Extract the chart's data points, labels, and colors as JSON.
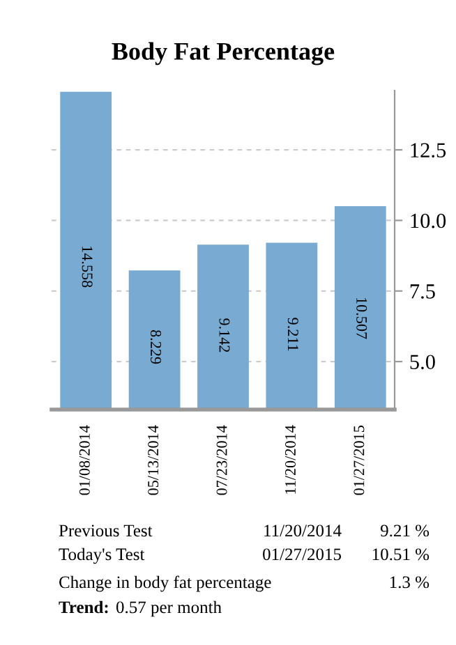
{
  "chart_data": {
    "type": "bar",
    "title": "Body Fat Percentage",
    "categories": [
      "01/08/2014",
      "05/13/2014",
      "07/23/2014",
      "11/20/2014",
      "01/27/2015"
    ],
    "values": [
      14.558,
      8.229,
      9.142,
      9.211,
      10.507
    ],
    "color": "#78aad2",
    "ylim": [
      3.3,
      14.6
    ],
    "yticks": [
      {
        "value": 5,
        "label": "5.0"
      },
      7.5,
      {
        "value": 10,
        "label": "10.0"
      },
      12.5
    ],
    "grid": "y",
    "data_labels": true,
    "legend": false,
    "annotations": [
      "Previous Test",
      "11/20/2014",
      "9.21 %",
      "Today's Test",
      "01/27/2015",
      "10.51 %",
      "Change in body fat percentage",
      "1.3 %",
      "Trend:",
      "0.57 per month"
    ]
  }
}
